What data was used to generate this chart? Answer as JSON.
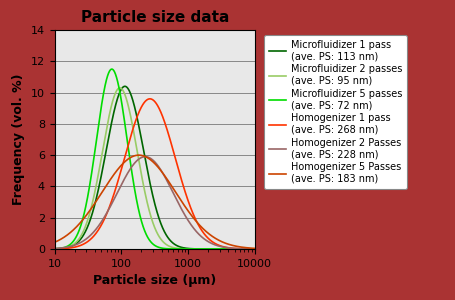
{
  "title": "Particle size data",
  "xlabel": "Particle size (μm)",
  "ylabel": "Frequency (vol. %)",
  "xlim": [
    10,
    10000
  ],
  "ylim": [
    0,
    14
  ],
  "yticks": [
    0,
    2,
    4,
    6,
    8,
    10,
    12,
    14
  ],
  "series": [
    {
      "label": "Microfluidizer 1 pass\n(ave. PS: 113 nm)",
      "color": "#006600",
      "peak": 113,
      "peak_val": 10.4,
      "sigma": 0.28
    },
    {
      "label": "Microfluidizer 2 passes\n(ave. PS: 95 nm)",
      "color": "#99cc66",
      "peak": 95,
      "peak_val": 10.3,
      "sigma": 0.26
    },
    {
      "label": "Microfluidizer 5 passes\n(ave. PS: 72 nm)",
      "color": "#00dd00",
      "peak": 72,
      "peak_val": 11.5,
      "sigma": 0.23
    },
    {
      "label": "Homogenizer 1 pass\n(ave. PS: 268 nm)",
      "color": "#ff3300",
      "peak": 268,
      "peak_val": 9.6,
      "sigma": 0.38
    },
    {
      "label": "Homogenizer 2 Passes\n(ave. PS: 228 nm)",
      "color": "#996666",
      "peak": 228,
      "peak_val": 5.9,
      "sigma": 0.42
    },
    {
      "label": "Homogenizer 5 Passes\n(ave. PS: 183 nm)",
      "color": "#cc4400",
      "peak": 183,
      "peak_val": 6.0,
      "sigma": 0.55
    }
  ],
  "plot_bg_color": "#e8e8e8",
  "fig_bg_color": "#c8c8c8",
  "outer_border_color": "#aa3333",
  "legend_fontsize": 7,
  "axis_label_fontsize": 9,
  "title_fontsize": 11
}
